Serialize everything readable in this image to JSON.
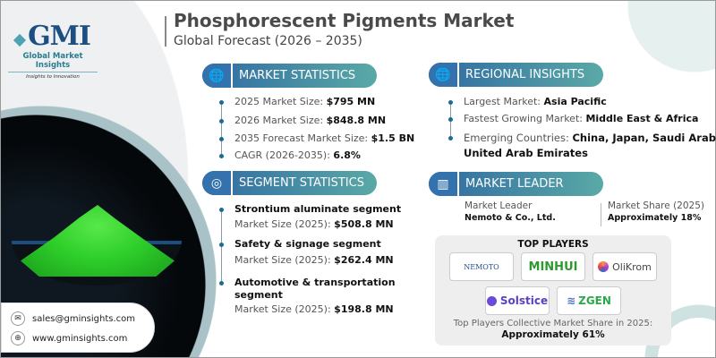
{
  "logo": {
    "mark": "GMI",
    "name": "Global Market Insights",
    "tagline": "Insights to Innovation"
  },
  "header": {
    "title": "Phosphorescent Pigments Market",
    "subtitle": "Global Forecast (2026 – 2035)"
  },
  "market_statistics": {
    "heading": "MARKET STATISTICS",
    "icon": "globe-chart-icon",
    "items": [
      {
        "label": "2025 Market Size: ",
        "value": "$795 MN"
      },
      {
        "label": "2026 Market Size: ",
        "value": "$848.8 MN"
      },
      {
        "label": "2035 Forecast Market Size: ",
        "value": "$1.5 BN"
      },
      {
        "label": "CAGR (2026-2035): ",
        "value": "6.8%"
      }
    ]
  },
  "regional_insights": {
    "heading": "REGIONAL INSIGHTS",
    "icon": "globe-icon",
    "items": [
      {
        "label": "Largest Market: ",
        "value": "Asia Pacific"
      },
      {
        "label": "Fastest Growing Market: ",
        "value": "Middle East & Africa"
      },
      {
        "label": "Emerging Countries:  ",
        "value": "China, Japan, Saudi Arabia",
        "value2": "United Arab Emirates"
      }
    ]
  },
  "segment_statistics": {
    "heading": "SEGMENT STATISTICS",
    "icon": "target-chart-icon",
    "items": [
      {
        "name": "Strontium aluminate segment",
        "label": "Market Size (2025): ",
        "value": "$508.8 MN"
      },
      {
        "name": "Safety & signage segment",
        "label": "Market Size (2025): ",
        "value": "$262.4 MN"
      },
      {
        "name": "Automotive & transportation",
        "name2": "segment",
        "label": "Market Size (2025): ",
        "value": "$198.8 MN"
      }
    ]
  },
  "market_leader": {
    "heading": "MARKET LEADER",
    "icon": "bar-chart-icon",
    "leader_label": "Market Leader",
    "leader": "Nemoto & Co., Ltd.",
    "share_label": "Market Share (2025)",
    "share": "Approximately 18%"
  },
  "top_players": {
    "heading": "TOP PLAYERS",
    "players": [
      "NEMOTO",
      "MINHUI",
      "OliKrom",
      "Solstice",
      "ZGEN"
    ],
    "footer_label": "Top Players Collective Market Share in 2025:",
    "footer_value": "Approximately 61%"
  },
  "contact": {
    "email": "sales@gminsights.com",
    "website": "www.gminsights.com"
  },
  "colors": {
    "pill_start": "#2f6aa2",
    "pill_end": "#5aa9a6",
    "powder": "#2fcf2a"
  }
}
